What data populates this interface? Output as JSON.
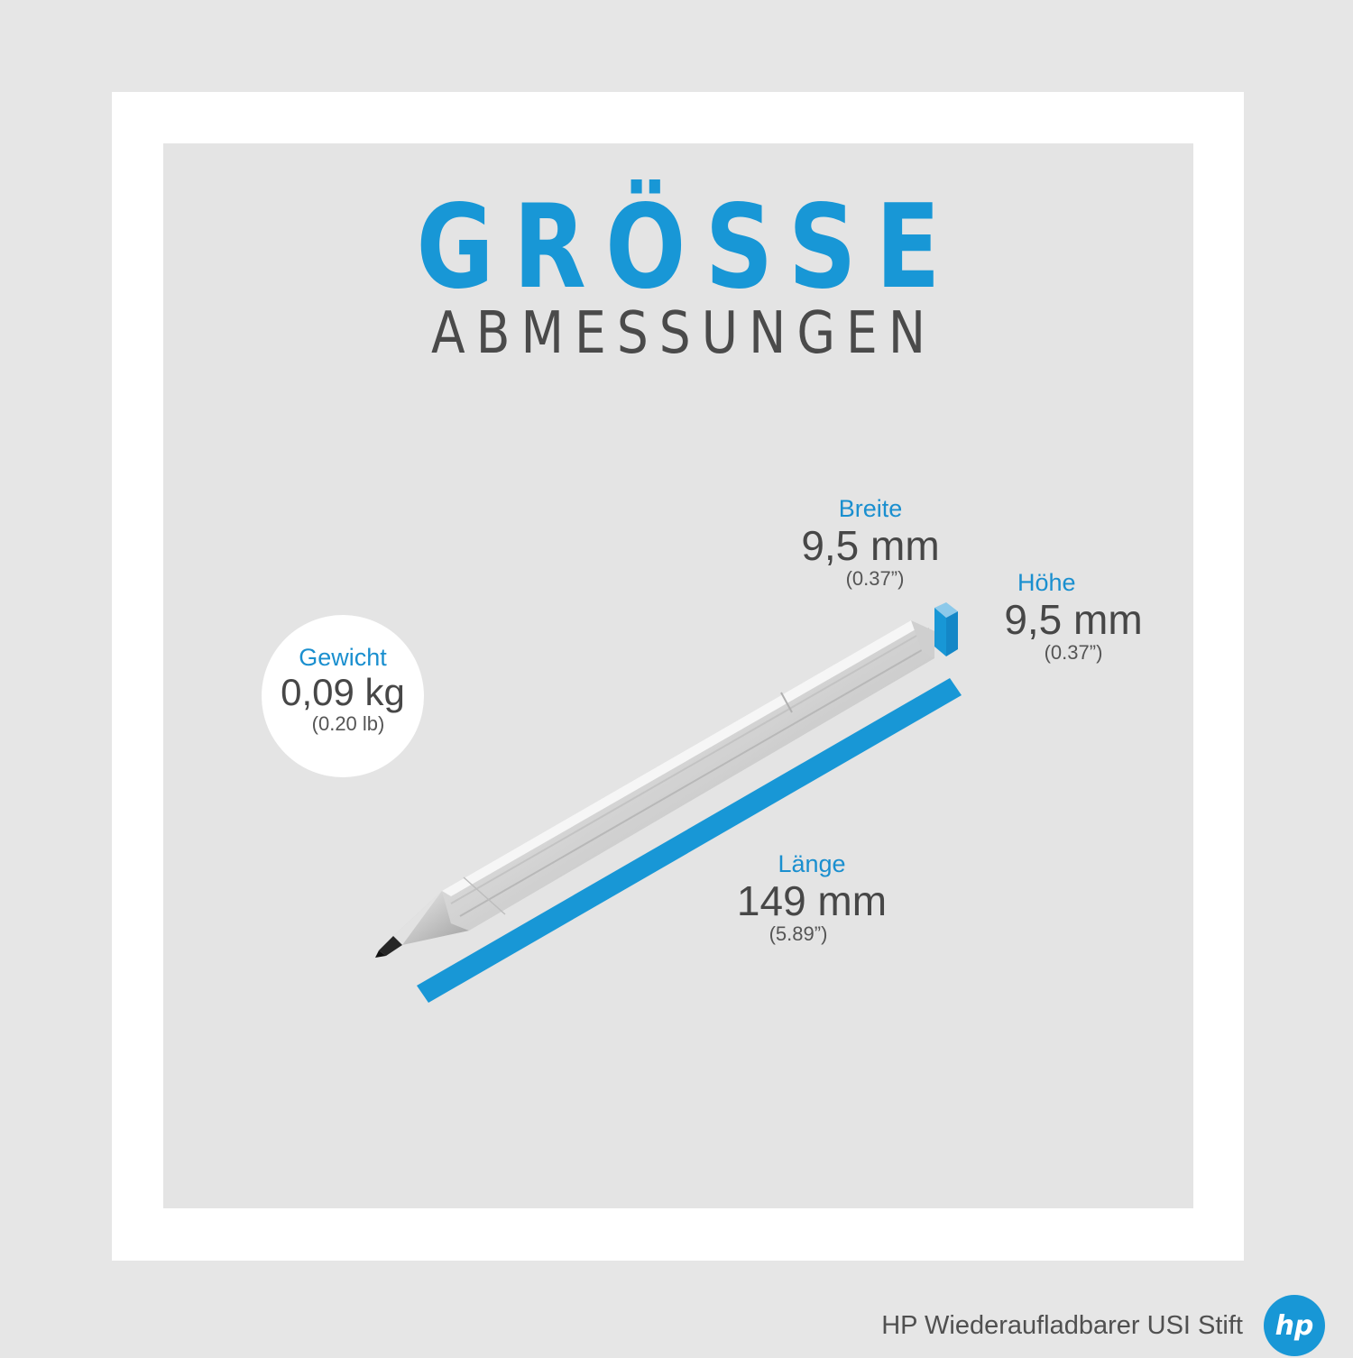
{
  "headline": "GRÖSSE",
  "subheadline": "ABMESSUNGEN",
  "specs": {
    "breite": {
      "label": "Breite",
      "value": "9,5 mm",
      "imperial": "(0.37”)"
    },
    "hoehe": {
      "label": "Höhe",
      "value": "9,5 mm",
      "imperial": "(0.37”)"
    },
    "laenge": {
      "label": "Länge",
      "value": "149 mm",
      "imperial": "(5.89”)"
    },
    "gewicht": {
      "label": "Gewicht",
      "value": "0,09 kg",
      "imperial": "(0.20 lb)"
    }
  },
  "footer": {
    "product_name": "HP Wiederaufladbarer USI Stift",
    "logo_text": "hp"
  },
  "colors": {
    "accent": "#1897d6",
    "background": "#e6e6e6",
    "frame": "#ffffff",
    "text": "#474747"
  },
  "icons": [
    "pen-illustration",
    "length-bar",
    "cross-section-cube",
    "hp-logo"
  ]
}
